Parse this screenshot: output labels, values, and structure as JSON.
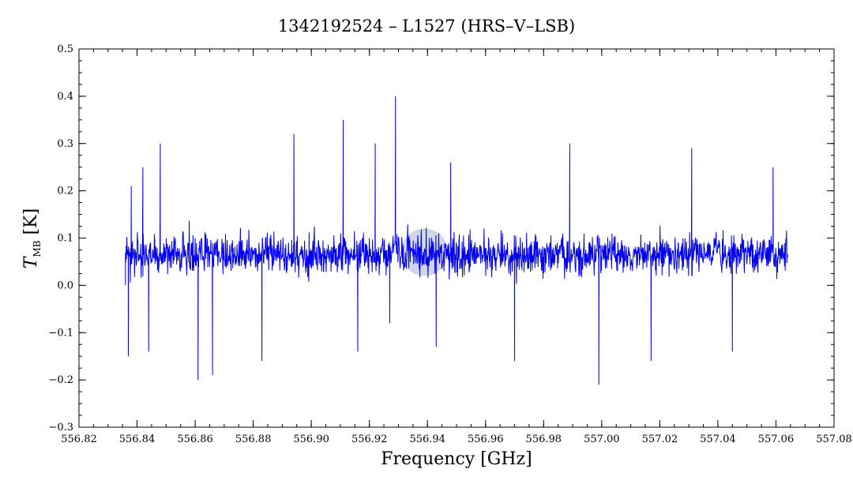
{
  "chart_data": {
    "type": "line",
    "title": "1342192524 – L1527 (HRS–V–LSB)",
    "xlabel": "Frequency [GHz]",
    "ylabel_main": "T",
    "ylabel_sub": "MB",
    "ylabel_unit": "[K]",
    "xlim": [
      556.82,
      557.08
    ],
    "ylim": [
      -0.3,
      0.5
    ],
    "x_ticks": [
      556.82,
      556.84,
      556.86,
      556.88,
      556.9,
      556.92,
      556.94,
      556.96,
      556.98,
      557.0,
      557.02,
      557.04,
      557.06,
      557.08
    ],
    "x_tick_labels": [
      "556.82",
      "556.84",
      "556.86",
      "556.88",
      "556.90",
      "556.92",
      "556.94",
      "556.96",
      "556.98",
      "557.00",
      "557.02",
      "557.04",
      "557.06",
      "557.08"
    ],
    "y_ticks": [
      -0.3,
      -0.2,
      -0.1,
      0.0,
      0.1,
      0.2,
      0.3,
      0.4,
      0.5
    ],
    "y_tick_labels": [
      "−0.3",
      "−0.2",
      "−0.1",
      "0.0",
      "0.1",
      "0.2",
      "0.3",
      "0.4",
      "0.5"
    ],
    "x_minor_step": 0.005,
    "y_minor_step": 0.025,
    "grid": false,
    "line_color": "#0000ee",
    "series": [
      {
        "x_range": [
          556.836,
          557.064
        ],
        "y_envelope": [
          -0.2,
          0.4
        ],
        "points": [
          [
            556.836,
            0.0
          ],
          [
            556.837,
            -0.15
          ],
          [
            556.838,
            0.21
          ],
          [
            556.842,
            0.25
          ],
          [
            556.844,
            -0.14
          ],
          [
            556.848,
            0.3
          ],
          [
            556.861,
            -0.2
          ],
          [
            556.866,
            -0.19
          ],
          [
            556.883,
            -0.16
          ],
          [
            556.894,
            0.32
          ],
          [
            556.911,
            0.35
          ],
          [
            556.916,
            -0.14
          ],
          [
            556.922,
            0.3
          ],
          [
            556.927,
            -0.08
          ],
          [
            556.929,
            0.4
          ],
          [
            556.943,
            -0.13
          ],
          [
            556.948,
            0.26
          ],
          [
            556.97,
            -0.16
          ],
          [
            556.989,
            0.3
          ],
          [
            556.999,
            -0.21
          ],
          [
            557.017,
            -0.16
          ],
          [
            557.031,
            0.29
          ],
          [
            557.045,
            -0.14
          ],
          [
            557.059,
            0.25
          ],
          [
            557.064,
            0.06
          ]
        ]
      }
    ],
    "highlight": {
      "x": 556.939,
      "y": 0.07,
      "color": "#aab3dd"
    }
  }
}
